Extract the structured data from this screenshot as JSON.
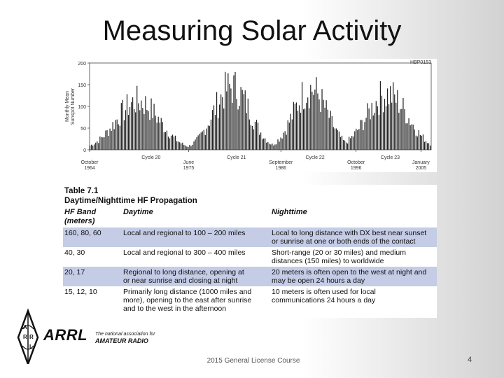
{
  "slide": {
    "title": "Measuring Solar Activity",
    "footer": "2015 General License Course",
    "page_number": "4"
  },
  "chart_data": {
    "type": "bar",
    "title": "",
    "figure_id": "HBP0153",
    "ylabel_line1": "Monthly Mean",
    "ylabel_line2": "Sunspot Number",
    "ylim": [
      0,
      200
    ],
    "y_ticks": [
      "0",
      "50",
      "100",
      "150",
      "200"
    ],
    "x_tick_labels": [
      {
        "line1": "October",
        "line2": "1964"
      },
      {
        "line1": "June",
        "line2": "1975"
      },
      {
        "line1": "September",
        "line2": "1986"
      },
      {
        "line1": "October",
        "line2": "1996"
      },
      {
        "line1": "January",
        "line2": "2005"
      }
    ],
    "cycle_labels": [
      "Cycle 20",
      "Cycle 21",
      "Cycle 22",
      "Cycle 23"
    ],
    "cycles": [
      {
        "name": "Cycle 20",
        "peak": 135
      },
      {
        "name": "Cycle 21",
        "peak": 175
      },
      {
        "name": "Cycle 22",
        "peak": 170
      },
      {
        "name": "Cycle 23",
        "peak": 155
      }
    ]
  },
  "table": {
    "title": "Table 7.1",
    "subtitle": "Daytime/Nighttime HF Propagation",
    "headers": {
      "band_line1": "HF Band",
      "band_line2": "(meters)",
      "daytime": "Daytime",
      "nighttime": "Nighttime"
    },
    "rows": [
      {
        "band": "160, 80, 60",
        "day": [
          "Local and regional to 100 – 200 miles"
        ],
        "night": [
          "Local to long distance with DX best near sunset",
          "or sunrise at one or both ends of the contact"
        ]
      },
      {
        "band": "40, 30",
        "day": [
          "Local and regional to 300 – 400 miles"
        ],
        "night": [
          "Short-range (20 or 30 miles) and medium",
          "distances (150 miles) to worldwide"
        ]
      },
      {
        "band": "20, 17",
        "day": [
          "Regional to long distance, opening at",
          "or near sunrise and closing at night"
        ],
        "night": [
          "20 meters is often open to the west at night and",
          "may be open 24 hours a day"
        ]
      },
      {
        "band": "15, 12, 10",
        "day": [
          "Primarily long distance (1000 miles and",
          "more), opening to the east after sunrise",
          "and to the west in the afternoon"
        ],
        "night": [
          "10 meters is often used for local",
          "communications 24 hours a day"
        ]
      }
    ]
  },
  "logo": {
    "name": "ARRL",
    "tagline1": "The national association for",
    "tagline2": "AMATEUR RADIO",
    "diamond_letters": [
      "A",
      "R",
      "R",
      "L"
    ]
  }
}
